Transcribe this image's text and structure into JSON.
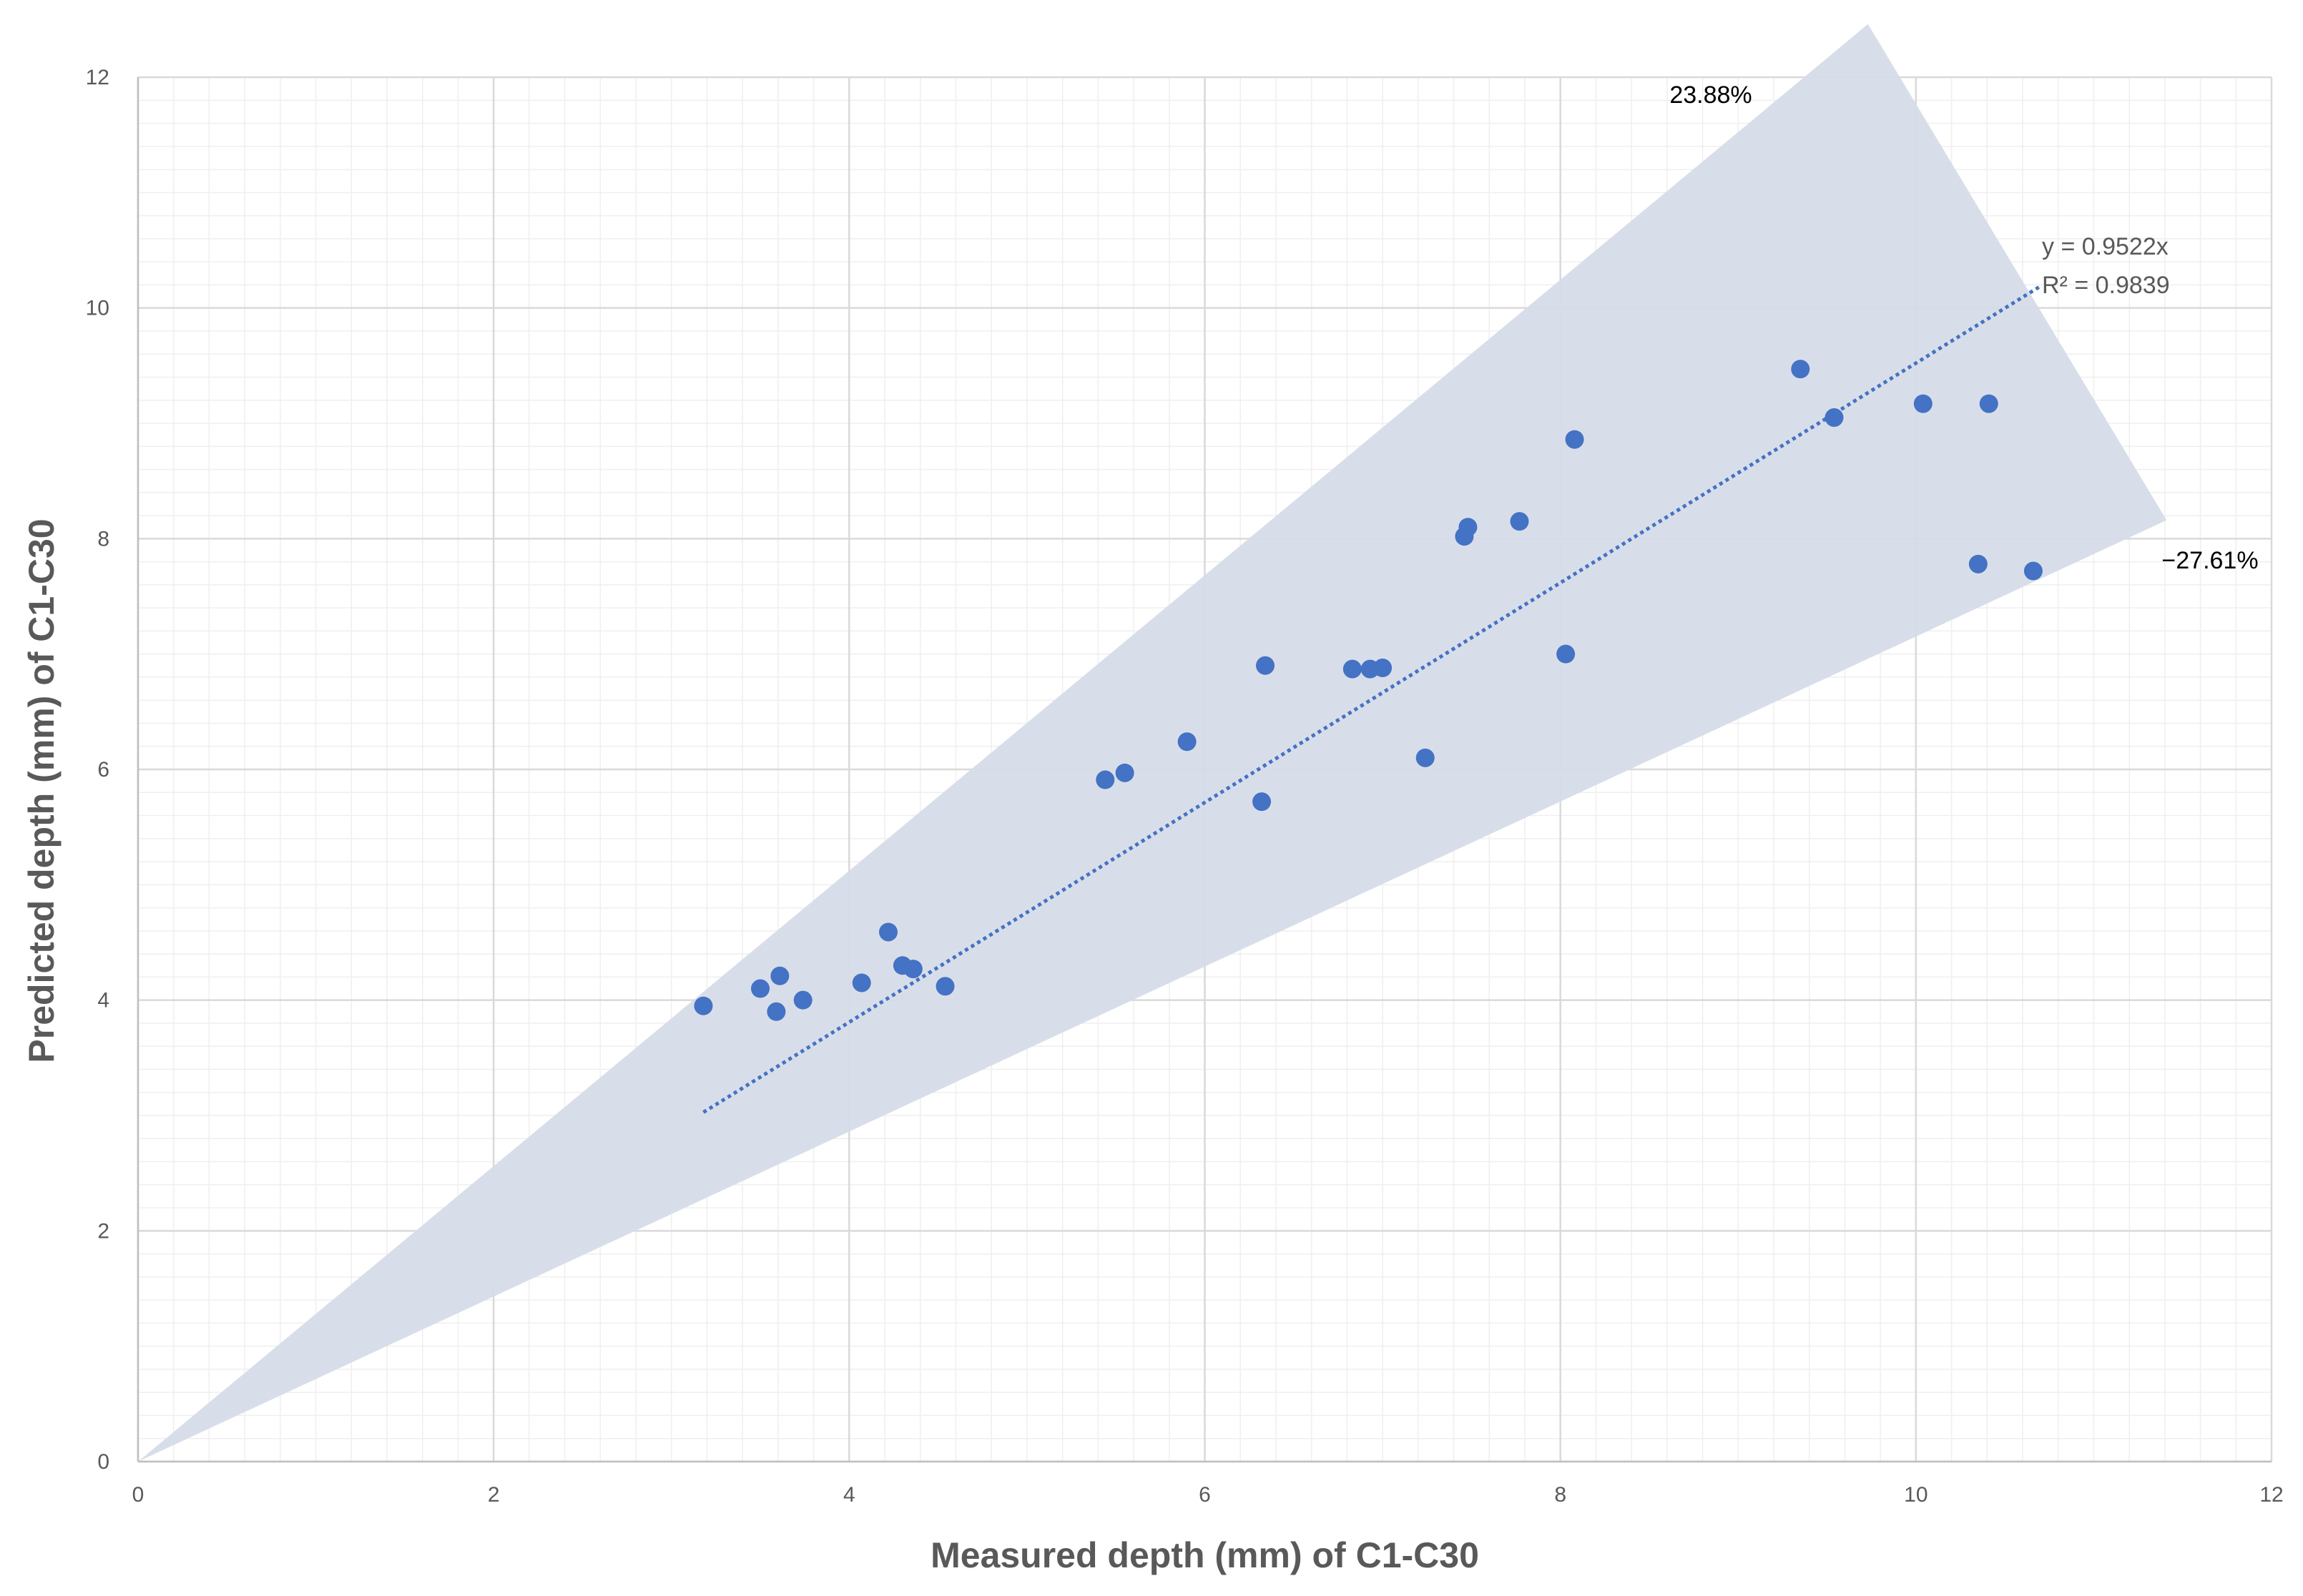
{
  "chart_data": {
    "type": "scatter",
    "title": "",
    "xlabel": "Measured depth (mm) of C1-C30",
    "ylabel": "Predicted depth (mm) of C1-C30",
    "xlim": [
      0,
      12
    ],
    "ylim": [
      0,
      12
    ],
    "x_ticks": [
      0,
      2,
      4,
      6,
      8,
      10,
      12
    ],
    "y_ticks": [
      0,
      2,
      4,
      6,
      8,
      10,
      12
    ],
    "x_tick_labels": [
      "0",
      "2",
      "4",
      "6",
      "8",
      "10",
      "12"
    ],
    "y_tick_labels": [
      "0",
      "2",
      "4",
      "6",
      "8",
      "10",
      "12"
    ],
    "grid": true,
    "minor_grid": true,
    "colors": {
      "points": "#4472C4",
      "trendline": "#4472C4",
      "band_fill": "#D6DCE8",
      "grid_major": "#D9D9D9",
      "grid_minor": "#EFEFEF",
      "annotation_text": "#000000",
      "equation_text": "#595959"
    },
    "series": [
      {
        "name": "C1-C30",
        "points": [
          {
            "x": 3.18,
            "y": 3.95
          },
          {
            "x": 3.5,
            "y": 4.1
          },
          {
            "x": 3.61,
            "y": 4.21
          },
          {
            "x": 3.59,
            "y": 3.9
          },
          {
            "x": 3.74,
            "y": 4.0
          },
          {
            "x": 4.07,
            "y": 4.15
          },
          {
            "x": 4.22,
            "y": 4.59
          },
          {
            "x": 4.3,
            "y": 4.3
          },
          {
            "x": 4.36,
            "y": 4.27
          },
          {
            "x": 4.54,
            "y": 4.12
          },
          {
            "x": 5.44,
            "y": 5.91
          },
          {
            "x": 5.55,
            "y": 5.97
          },
          {
            "x": 5.9,
            "y": 6.24
          },
          {
            "x": 6.32,
            "y": 5.72
          },
          {
            "x": 6.34,
            "y": 6.9
          },
          {
            "x": 6.83,
            "y": 6.87
          },
          {
            "x": 6.93,
            "y": 6.87
          },
          {
            "x": 7.0,
            "y": 6.88
          },
          {
            "x": 7.24,
            "y": 6.1
          },
          {
            "x": 7.46,
            "y": 8.02
          },
          {
            "x": 7.48,
            "y": 8.1
          },
          {
            "x": 7.77,
            "y": 8.15
          },
          {
            "x": 8.03,
            "y": 7.0
          },
          {
            "x": 8.08,
            "y": 8.86
          },
          {
            "x": 9.35,
            "y": 9.47
          },
          {
            "x": 9.54,
            "y": 9.05
          },
          {
            "x": 10.04,
            "y": 9.17
          },
          {
            "x": 10.35,
            "y": 7.78
          },
          {
            "x": 10.41,
            "y": 9.17
          },
          {
            "x": 10.66,
            "y": 7.72
          }
        ]
      }
    ],
    "trendline": {
      "type": "linear_through_origin",
      "slope": 0.9522,
      "x_start": 3.18,
      "x_end": 10.7,
      "equation": "y = 0.9522x",
      "r_squared": "R² = 0.9839"
    },
    "band": {
      "vertices": [
        {
          "x": 0,
          "y": 0
        },
        {
          "x": 9.73,
          "y": 12.46
        },
        {
          "x": 11.41,
          "y": 8.16
        }
      ],
      "upper_label": "23.88%",
      "lower_label": "−27.61%"
    }
  }
}
